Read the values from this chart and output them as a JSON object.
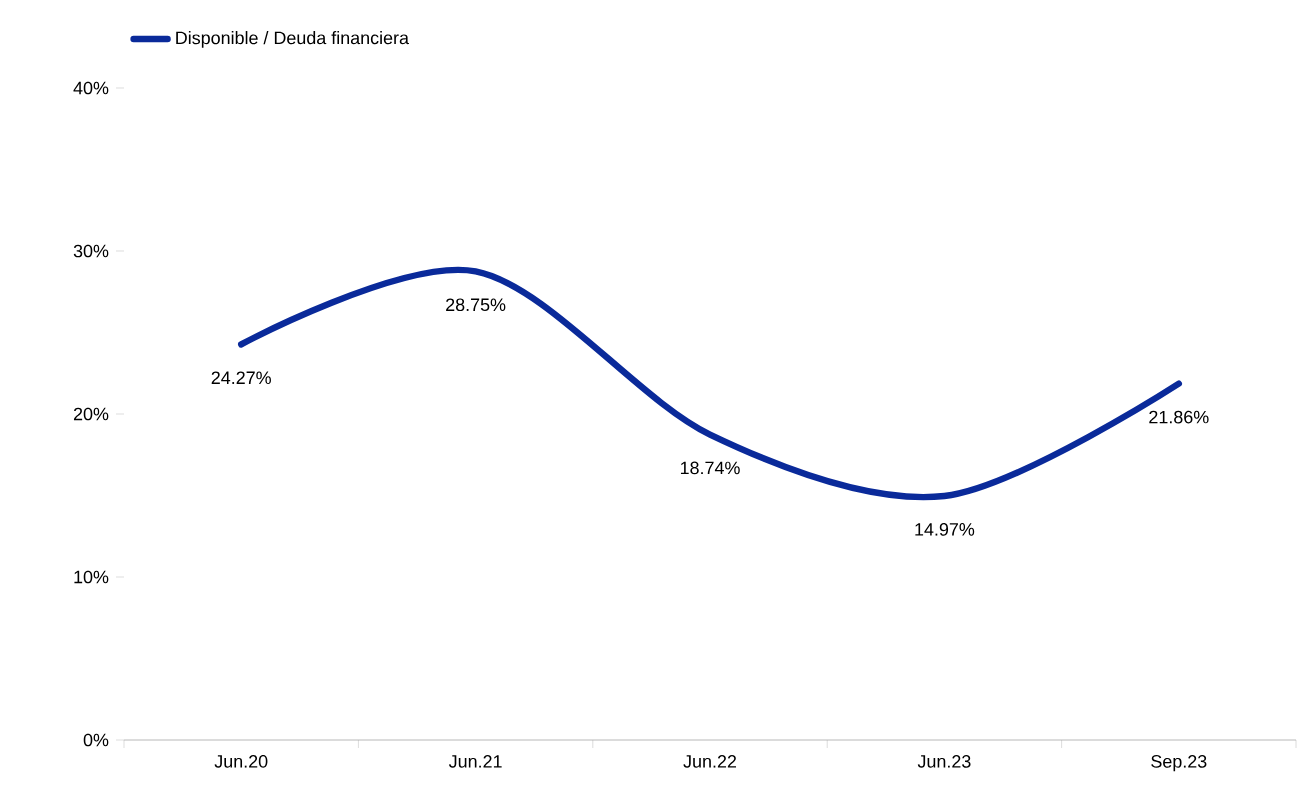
{
  "chart_data": {
    "type": "line",
    "categories": [
      "Jun.20",
      "Jun.21",
      "Jun.22",
      "Jun.23",
      "Sep.23"
    ],
    "series": [
      {
        "name": "Disponible / Deuda financiera",
        "color": "#0a2a9a",
        "values": [
          24.27,
          28.75,
          18.74,
          14.97,
          21.86
        ],
        "value_labels": [
          "24.27%",
          "28.75%",
          "18.74%",
          "14.97%",
          "21.86%"
        ]
      }
    ],
    "ylim": [
      0,
      40
    ],
    "yticks": [
      {
        "value": 0,
        "label": "0%"
      },
      {
        "value": 10,
        "label": "10%"
      },
      {
        "value": 20,
        "label": "20%"
      },
      {
        "value": 30,
        "label": "30%"
      },
      {
        "value": 40,
        "label": "40%"
      }
    ],
    "grid": false,
    "legend": "top left",
    "marker": "none",
    "line_style": "solid"
  }
}
